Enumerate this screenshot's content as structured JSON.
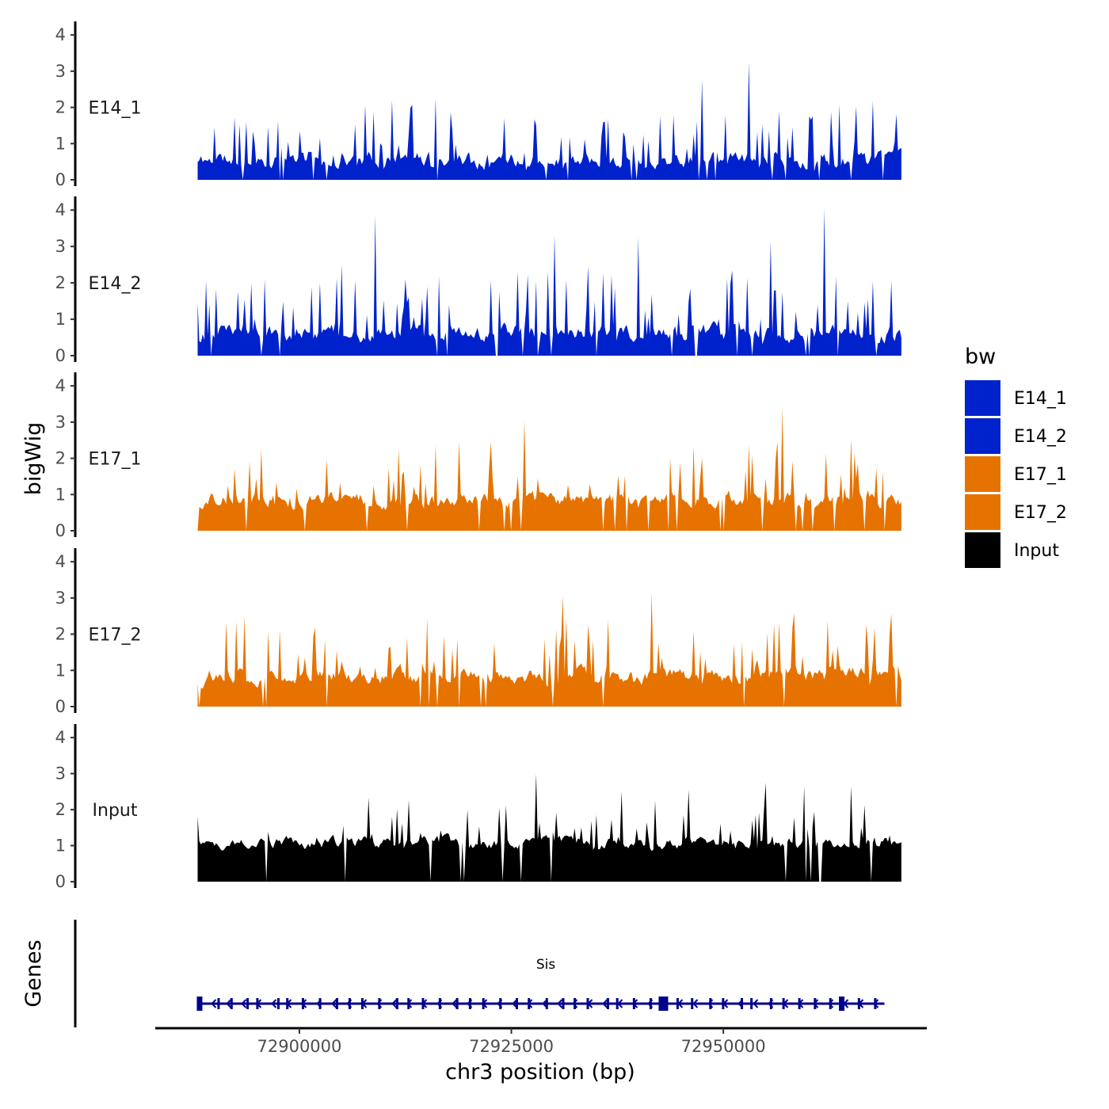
{
  "chart_data": {
    "type": "area",
    "ylabel": "bigWig",
    "genes_label": "Genes",
    "xlabel": "chr3 position (bp)",
    "x_range": [
      72888000,
      72971000
    ],
    "x_view": [
      72883000,
      72974000
    ],
    "x_ticks": [
      72900000,
      72925000,
      72950000
    ],
    "x_tick_labels": [
      "72900000",
      "72925000",
      "72950000"
    ],
    "ylim": [
      0,
      4.2
    ],
    "y_ticks": [
      0,
      1,
      2,
      3,
      4
    ],
    "y_tick_labels": [
      "0",
      "1",
      "2",
      "3",
      "4"
    ],
    "legend": {
      "title": "bw",
      "entries": [
        {
          "name": "E14_1",
          "color": "#0022cc"
        },
        {
          "name": "E14_2",
          "color": "#0022cc"
        },
        {
          "name": "E17_1",
          "color": "#e67300"
        },
        {
          "name": "E17_2",
          "color": "#e67300"
        },
        {
          "name": "Input",
          "color": "#000000"
        }
      ]
    },
    "series": [
      {
        "name": "E14_1",
        "color": "#0022cc",
        "seed": 11,
        "base": 0.45,
        "spread": 1.3,
        "peaks": [
          [
            72953000,
            3.25
          ],
          [
            72947500,
            2.75
          ],
          [
            72911000,
            2.2
          ],
          [
            72916000,
            2.25
          ],
          [
            72956500,
            1.9
          ],
          [
            72960500,
            1.75
          ]
        ]
      },
      {
        "name": "E14_2",
        "color": "#0022cc",
        "seed": 23,
        "base": 0.5,
        "spread": 1.4,
        "peaks": [
          [
            72909000,
            3.85
          ],
          [
            72962000,
            4.05
          ],
          [
            72955500,
            3.15
          ],
          [
            72930000,
            3.3
          ],
          [
            72940000,
            3.25
          ],
          [
            72905000,
            2.5
          ],
          [
            72934000,
            2.45
          ]
        ]
      },
      {
        "name": "E17_1",
        "color": "#e67300",
        "seed": 37,
        "base": 0.75,
        "spread": 1.3,
        "peaks": [
          [
            72926500,
            3.05
          ],
          [
            72957000,
            3.4
          ],
          [
            72922500,
            2.45
          ],
          [
            72946500,
            2.35
          ],
          [
            72916000,
            2.35
          ]
        ]
      },
      {
        "name": "E17_2",
        "color": "#e67300",
        "seed": 53,
        "base": 0.75,
        "spread": 1.3,
        "peaks": [
          [
            72931000,
            3.05
          ],
          [
            72941500,
            3.15
          ],
          [
            72893500,
            2.5
          ],
          [
            72956000,
            2.3
          ],
          [
            72931500,
            2.45
          ]
        ]
      },
      {
        "name": "Input",
        "color": "#000000",
        "seed": 71,
        "base": 1.0,
        "spread": 1.0,
        "peaks": [
          [
            72928000,
            3.0
          ],
          [
            72946000,
            2.55
          ],
          [
            72955000,
            2.75
          ],
          [
            72959500,
            2.65
          ],
          [
            72965000,
            2.65
          ],
          [
            72938000,
            2.5
          ]
        ]
      }
    ],
    "gene": {
      "name": "Sis",
      "start": 72888000,
      "end": 72969000,
      "strand": "-",
      "color": "#00008b"
    }
  }
}
